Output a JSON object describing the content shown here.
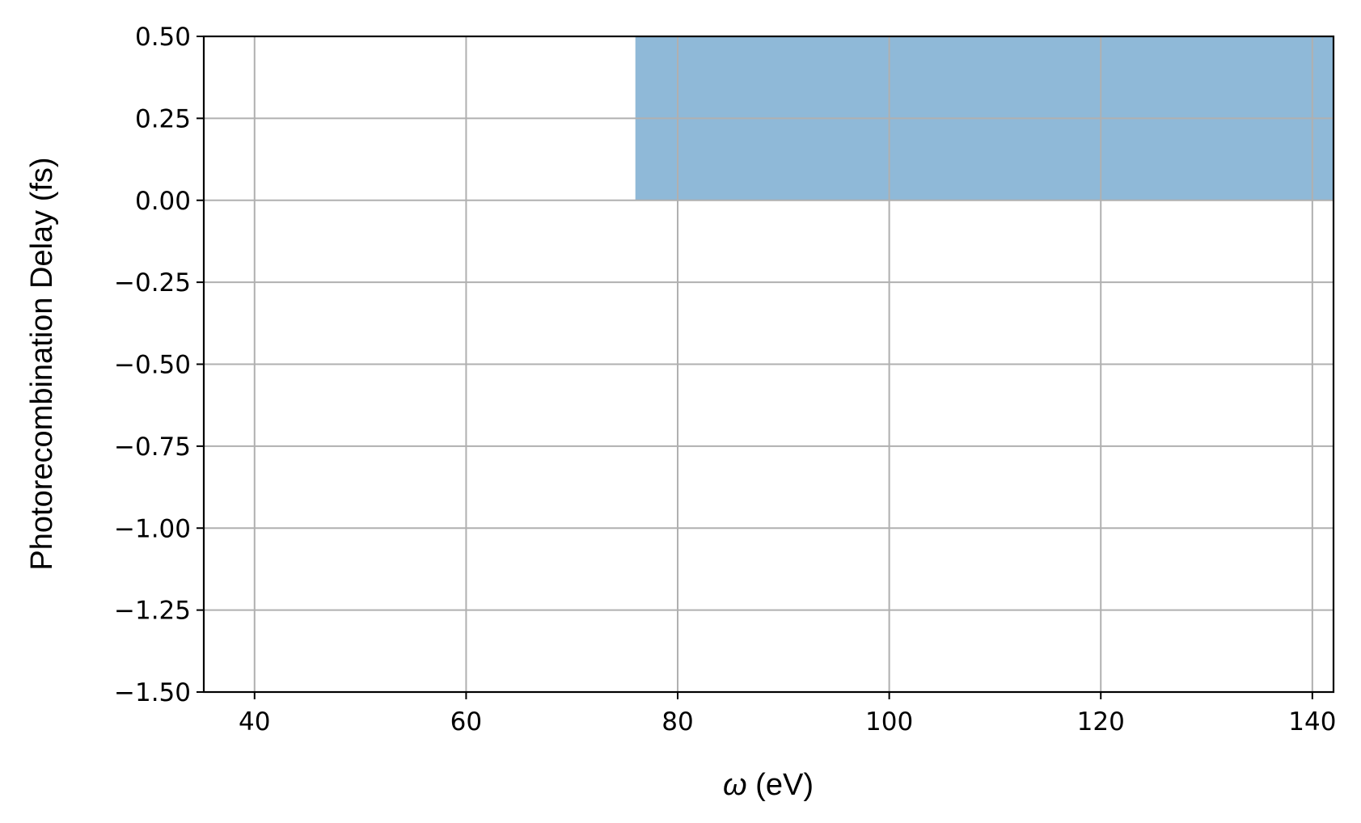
{
  "chart_data": {
    "type": "area",
    "title": "",
    "xlabel_symbol": "ω",
    "xlabel_unit": " (eV)",
    "ylabel": "Photorecombination Delay (fs)",
    "xlim": [
      35.2,
      142
    ],
    "ylim": [
      -1.5,
      0.5
    ],
    "grid": true,
    "x_ticks": [
      40,
      60,
      80,
      100,
      120,
      140
    ],
    "x_tick_labels": [
      "40",
      "60",
      "80",
      "100",
      "120",
      "140"
    ],
    "y_ticks": [
      0.5,
      0.25,
      0.0,
      -0.25,
      -0.5,
      -0.75,
      -1.0,
      -1.25,
      -1.5
    ],
    "y_tick_labels": [
      "0.50",
      "0.25",
      "0.00",
      "−0.25",
      "−0.50",
      "−0.75",
      "−1.00",
      "−1.25",
      "−1.50"
    ],
    "series": [
      {
        "fill_color": "#8fb9d8",
        "x": [
          76,
          142
        ],
        "y_lower": [
          0.0,
          0.0
        ],
        "y_upper": [
          0.5,
          0.5
        ]
      }
    ]
  }
}
